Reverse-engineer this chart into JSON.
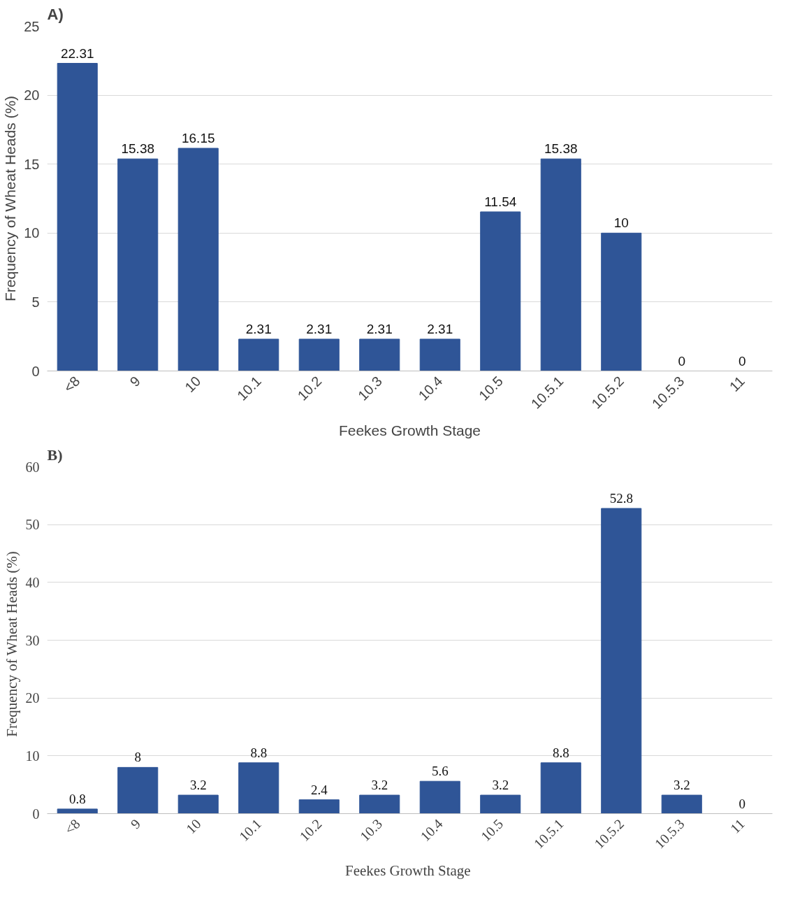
{
  "chart_data": [
    {
      "type": "bar",
      "title": "A)",
      "xlabel": "Feekes Growth Stage",
      "ylabel": "Frequency of Wheat Heads (%)",
      "categories": [
        "<8",
        "9",
        "10",
        "10.1",
        "10.2",
        "10.3",
        "10.4",
        "10.5",
        "10.5.1",
        "10.5.2",
        "10.5.3",
        "11"
      ],
      "values": [
        22.31,
        15.38,
        16.15,
        2.31,
        2.31,
        2.31,
        2.31,
        11.54,
        15.38,
        10,
        0,
        0
      ],
      "color": "#2f5597",
      "ylim": [
        0,
        25
      ],
      "yticks": [
        0,
        5,
        10,
        15,
        20,
        25
      ],
      "grid": "y",
      "data_labels": true
    },
    {
      "type": "bar",
      "title": "B)",
      "xlabel": "Feekes Growth  Stage",
      "ylabel": "Frequency  of Wheat Heads  (%)",
      "categories": [
        "<8",
        "9",
        "10",
        "10.1",
        "10.2",
        "10.3",
        "10.4",
        "10.5",
        "10.5.1",
        "10.5.2",
        "10.5.3",
        "11"
      ],
      "values": [
        0.8,
        8,
        3.2,
        8.8,
        2.4,
        3.2,
        5.6,
        3.2,
        8.8,
        52.8,
        3.2,
        0
      ],
      "color": "#2f5597",
      "ylim": [
        0,
        60
      ],
      "yticks": [
        0,
        10,
        20,
        30,
        40,
        50,
        60
      ],
      "grid": "y",
      "data_labels": true
    }
  ]
}
